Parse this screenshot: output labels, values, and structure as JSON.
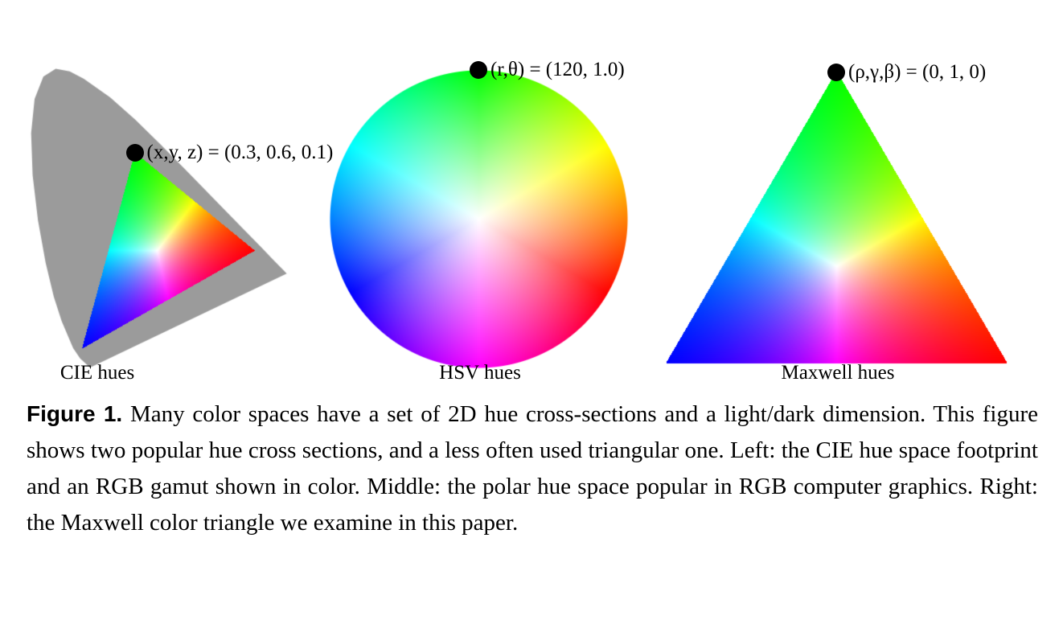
{
  "figure": {
    "panels": [
      {
        "id": "cie",
        "label": "CIE hues",
        "annotation": "(x,y, z) = (0.3, 0.6, 0.1)"
      },
      {
        "id": "hsv",
        "label": "HSV hues",
        "annotation": "(r,θ) = (120, 1.0)"
      },
      {
        "id": "maxwell",
        "label": "Maxwell hues",
        "annotation": "(ρ,γ,β) = (0, 1, 0)"
      }
    ],
    "caption_tag": "Figure 1.",
    "caption_text": "Many color spaces have a set of 2D hue cross-sections and a light/dark dimension. This figure shows two popular hue cross sections, and a less often used triangular one. Left: the CIE hue space footprint and an RGB gamut shown in color. Middle: the polar hue space popular in RGB computer graphics. Right: the Maxwell color triangle we examine in this paper.",
    "colors": {
      "locus_gray": "#9b9b9b",
      "marker_black": "#000000"
    }
  }
}
